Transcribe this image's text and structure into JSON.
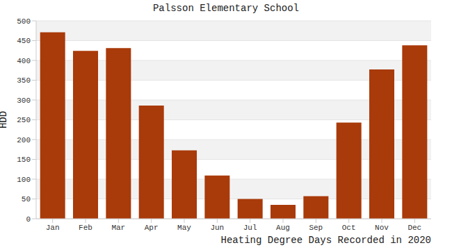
{
  "chart_data": {
    "type": "bar",
    "title": "Palsson Elementary School",
    "x_label": "Heating Degree Days Recorded in 2020",
    "y_label": "HDD",
    "categories": [
      "Jan",
      "Feb",
      "Mar",
      "Apr",
      "May",
      "Jun",
      "Jul",
      "Aug",
      "Sep",
      "Oct",
      "Nov",
      "Dec"
    ],
    "values": [
      471,
      424,
      431,
      286,
      173,
      109,
      50,
      35,
      57,
      243,
      377,
      438
    ],
    "color": "#a93a0a",
    "ylim": [
      0,
      500
    ],
    "yticks": [
      0,
      50,
      100,
      150,
      200,
      250,
      300,
      350,
      400,
      450,
      500
    ],
    "grid": true
  }
}
